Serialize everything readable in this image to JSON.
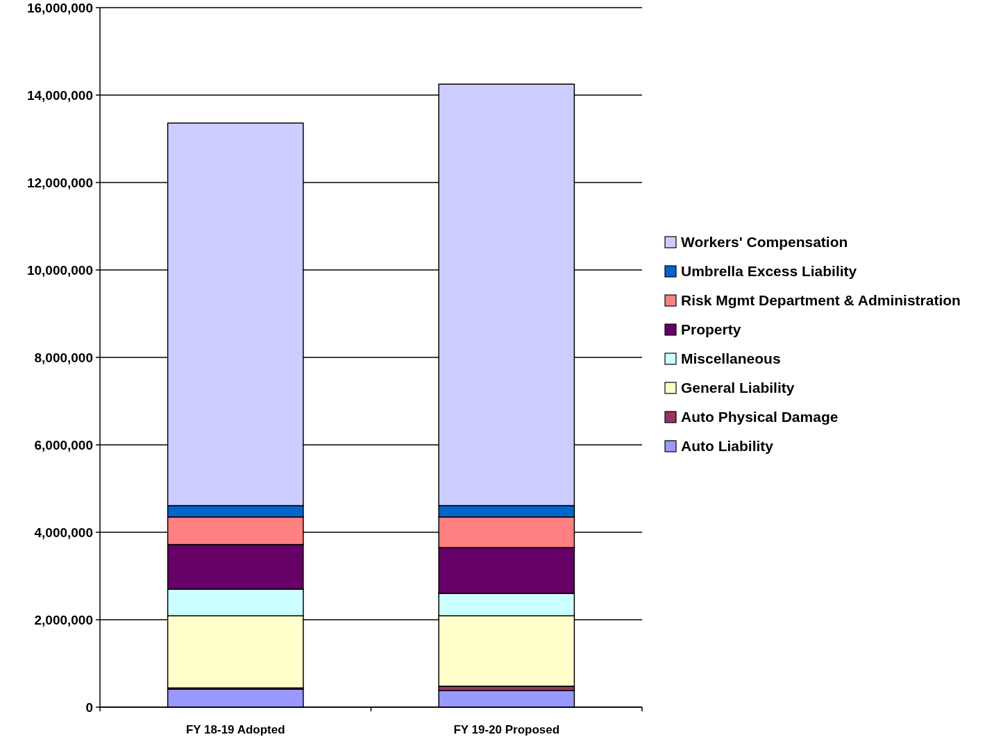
{
  "chart_data": {
    "type": "bar",
    "stacked": true,
    "categories": [
      "FY 18-19 Adopted",
      "FY 19-20 Proposed"
    ],
    "series": [
      {
        "name": "Auto Liability",
        "color": "#9999ff",
        "values": [
          410000,
          380000
        ]
      },
      {
        "name": "Auto Physical Damage",
        "color": "#993366",
        "values": [
          30000,
          100000
        ]
      },
      {
        "name": "General Liability",
        "color": "#ffffcc",
        "values": [
          1650000,
          1610000
        ]
      },
      {
        "name": "Miscellaneous",
        "color": "#ccffff",
        "values": [
          610000,
          510000
        ]
      },
      {
        "name": "Property",
        "color": "#660066",
        "values": [
          1020000,
          1050000
        ]
      },
      {
        "name": "Risk Mgmt Department & Administration",
        "color": "#ff8080",
        "values": [
          630000,
          700000
        ]
      },
      {
        "name": "Umbrella Excess Liability",
        "color": "#0066cc",
        "values": [
          260000,
          260000
        ]
      },
      {
        "name": "Workers' Compensation",
        "color": "#ccccff",
        "values": [
          8750000,
          9640000
        ]
      }
    ],
    "ylim": [
      0,
      16000000
    ],
    "yticks": [
      {
        "value": 0,
        "label": "0"
      },
      {
        "value": 2000000,
        "label": "2,000,000"
      },
      {
        "value": 4000000,
        "label": "4,000,000"
      },
      {
        "value": 6000000,
        "label": "6,000,000"
      },
      {
        "value": 8000000,
        "label": "8,000,000"
      },
      {
        "value": 10000000,
        "label": "10,000,000"
      },
      {
        "value": 12000000,
        "label": "12,000,000"
      },
      {
        "value": 14000000,
        "label": "14,000,000"
      },
      {
        "value": 16000000,
        "label": "16,000,000"
      }
    ],
    "grid": "y",
    "legend": "right"
  }
}
